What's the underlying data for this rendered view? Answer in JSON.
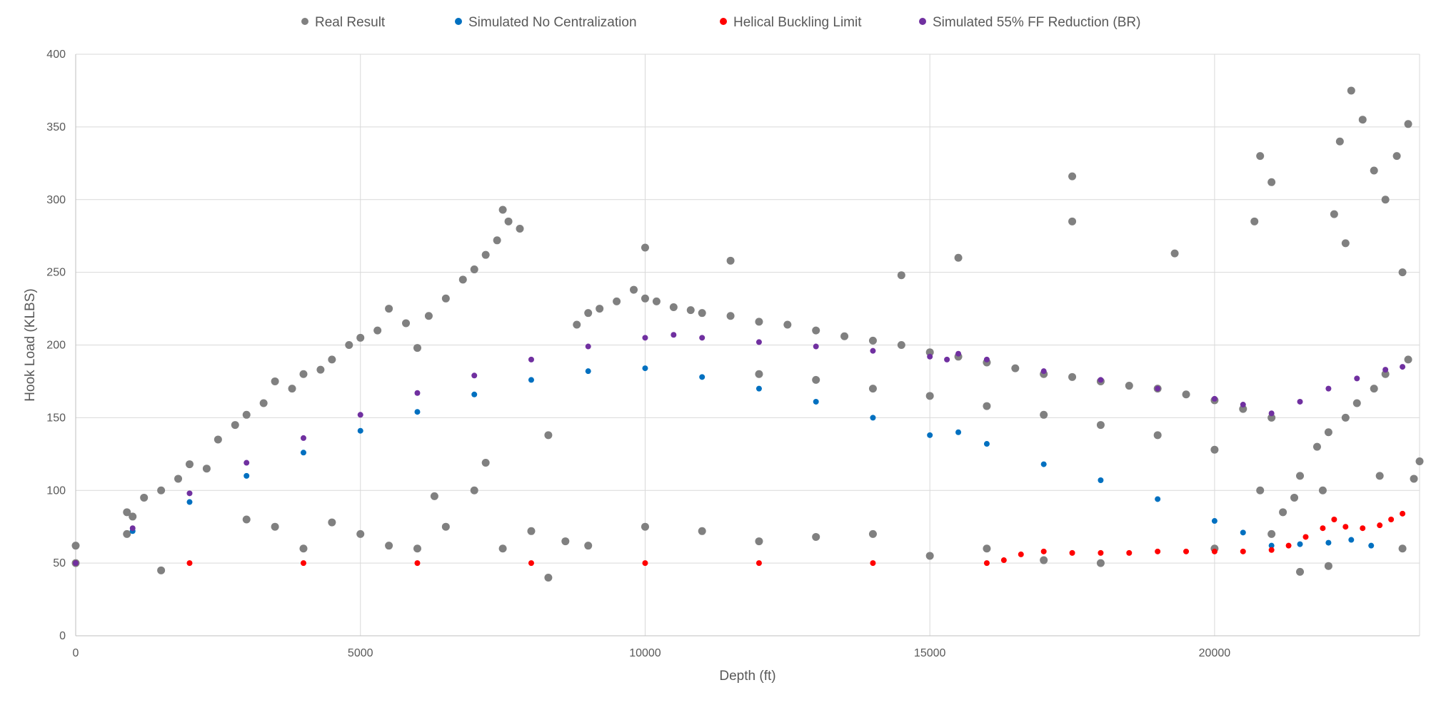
{
  "chart_data": {
    "type": "scatter",
    "title": "",
    "xlabel": "Depth (ft)",
    "ylabel": "Hook Load (KLBS)",
    "xlim": [
      0,
      23600
    ],
    "ylim": [
      0,
      400
    ],
    "x_ticks": [
      0,
      5000,
      10000,
      15000,
      20000
    ],
    "y_ticks": [
      0,
      50,
      100,
      150,
      200,
      250,
      300,
      350,
      400
    ],
    "x_tick_labels": [
      "0",
      "5000",
      "10000",
      "15000",
      "20000"
    ],
    "y_tick_labels": [
      "0",
      "50",
      "100",
      "150",
      "200",
      "250",
      "300",
      "350",
      "400"
    ],
    "grid": true,
    "legend_position": "top",
    "series": [
      {
        "name": "Real Result",
        "color": "#808080",
        "points": [
          [
            0,
            62
          ],
          [
            0,
            50
          ],
          [
            900,
            85
          ],
          [
            900,
            70
          ],
          [
            1000,
            82
          ],
          [
            1200,
            95
          ],
          [
            1500,
            100
          ],
          [
            1500,
            45
          ],
          [
            1800,
            108
          ],
          [
            2000,
            118
          ],
          [
            2300,
            115
          ],
          [
            2500,
            135
          ],
          [
            2800,
            145
          ],
          [
            3000,
            152
          ],
          [
            3300,
            160
          ],
          [
            3500,
            175
          ],
          [
            3800,
            170
          ],
          [
            4000,
            180
          ],
          [
            4300,
            183
          ],
          [
            4500,
            190
          ],
          [
            4800,
            200
          ],
          [
            5000,
            205
          ],
          [
            5300,
            210
          ],
          [
            5500,
            225
          ],
          [
            5800,
            215
          ],
          [
            6000,
            198
          ],
          [
            6200,
            220
          ],
          [
            6500,
            232
          ],
          [
            6800,
            245
          ],
          [
            7000,
            252
          ],
          [
            7200,
            262
          ],
          [
            7400,
            272
          ],
          [
            7600,
            285
          ],
          [
            7500,
            293
          ],
          [
            7800,
            280
          ],
          [
            3000,
            80
          ],
          [
            3500,
            75
          ],
          [
            4000,
            60
          ],
          [
            4500,
            78
          ],
          [
            5000,
            70
          ],
          [
            5500,
            62
          ],
          [
            6000,
            60
          ],
          [
            6500,
            75
          ],
          [
            6300,
            96
          ],
          [
            7000,
            100
          ],
          [
            7200,
            119
          ],
          [
            7500,
            60
          ],
          [
            8000,
            72
          ],
          [
            8300,
            40
          ],
          [
            8600,
            65
          ],
          [
            8800,
            214
          ],
          [
            9000,
            222
          ],
          [
            9200,
            225
          ],
          [
            9500,
            230
          ],
          [
            9800,
            238
          ],
          [
            10000,
            232
          ],
          [
            10200,
            230
          ],
          [
            10500,
            226
          ],
          [
            10800,
            224
          ],
          [
            11000,
            222
          ],
          [
            11500,
            220
          ],
          [
            12000,
            216
          ],
          [
            12500,
            214
          ],
          [
            13000,
            210
          ],
          [
            13500,
            206
          ],
          [
            14000,
            203
          ],
          [
            14500,
            200
          ],
          [
            15000,
            195
          ],
          [
            15500,
            192
          ],
          [
            16000,
            188
          ],
          [
            16500,
            184
          ],
          [
            17000,
            180
          ],
          [
            17500,
            178
          ],
          [
            18000,
            175
          ],
          [
            18500,
            172
          ],
          [
            19000,
            170
          ],
          [
            19500,
            166
          ],
          [
            20000,
            162
          ],
          [
            20500,
            156
          ],
          [
            21000,
            150
          ],
          [
            12000,
            180
          ],
          [
            13000,
            176
          ],
          [
            14000,
            170
          ],
          [
            15000,
            165
          ],
          [
            16000,
            158
          ],
          [
            17000,
            152
          ],
          [
            18000,
            145
          ],
          [
            19000,
            138
          ],
          [
            20000,
            128
          ],
          [
            20800,
            100
          ],
          [
            21000,
            70
          ],
          [
            21200,
            85
          ],
          [
            21500,
            110
          ],
          [
            21800,
            130
          ],
          [
            22000,
            140
          ],
          [
            22300,
            150
          ],
          [
            22500,
            160
          ],
          [
            22800,
            170
          ],
          [
            23000,
            180
          ],
          [
            23400,
            190
          ],
          [
            22200,
            340
          ],
          [
            22400,
            375
          ],
          [
            22600,
            355
          ],
          [
            22800,
            320
          ],
          [
            23000,
            300
          ],
          [
            23200,
            330
          ],
          [
            23400,
            352
          ],
          [
            22100,
            290
          ],
          [
            22300,
            270
          ],
          [
            23300,
            250
          ],
          [
            10000,
            267
          ],
          [
            11500,
            258
          ],
          [
            14500,
            248
          ],
          [
            15500,
            260
          ],
          [
            17500,
            316
          ],
          [
            17500,
            285
          ],
          [
            19300,
            263
          ],
          [
            20800,
            330
          ],
          [
            21000,
            312
          ],
          [
            20700,
            285
          ],
          [
            9000,
            62
          ],
          [
            10000,
            75
          ],
          [
            11000,
            72
          ],
          [
            12000,
            65
          ],
          [
            13000,
            68
          ],
          [
            14000,
            70
          ],
          [
            15000,
            55
          ],
          [
            16000,
            60
          ],
          [
            17000,
            52
          ],
          [
            18000,
            50
          ],
          [
            21500,
            44
          ],
          [
            22000,
            48
          ],
          [
            23300,
            60
          ],
          [
            23500,
            108
          ],
          [
            23600,
            120
          ],
          [
            22900,
            110
          ],
          [
            21900,
            100
          ],
          [
            21400,
            95
          ],
          [
            20000,
            60
          ],
          [
            8300,
            138
          ]
        ]
      },
      {
        "name": "Simulated No Centralization",
        "color": "#0070C0",
        "points": [
          [
            0,
            50
          ],
          [
            1000,
            72
          ],
          [
            2000,
            92
          ],
          [
            3000,
            110
          ],
          [
            4000,
            126
          ],
          [
            5000,
            141
          ],
          [
            6000,
            154
          ],
          [
            7000,
            166
          ],
          [
            8000,
            176
          ],
          [
            9000,
            182
          ],
          [
            10000,
            184
          ],
          [
            11000,
            178
          ],
          [
            12000,
            170
          ],
          [
            13000,
            161
          ],
          [
            14000,
            150
          ],
          [
            15000,
            138
          ],
          [
            15500,
            140
          ],
          [
            16000,
            132
          ],
          [
            17000,
            118
          ],
          [
            18000,
            107
          ],
          [
            19000,
            94
          ],
          [
            20000,
            79
          ],
          [
            20500,
            71
          ],
          [
            21000,
            62
          ],
          [
            21500,
            63
          ],
          [
            22000,
            64
          ],
          [
            22400,
            66
          ],
          [
            22750,
            62
          ]
        ]
      },
      {
        "name": "Helical Buckling Limit",
        "color": "#FF0000",
        "points": [
          [
            0,
            50
          ],
          [
            2000,
            50
          ],
          [
            4000,
            50
          ],
          [
            6000,
            50
          ],
          [
            8000,
            50
          ],
          [
            10000,
            50
          ],
          [
            12000,
            50
          ],
          [
            14000,
            50
          ],
          [
            16000,
            50
          ],
          [
            16300,
            52
          ],
          [
            16600,
            56
          ],
          [
            17000,
            58
          ],
          [
            17500,
            57
          ],
          [
            18000,
            57
          ],
          [
            18500,
            57
          ],
          [
            19000,
            58
          ],
          [
            19500,
            58
          ],
          [
            20000,
            58
          ],
          [
            20500,
            58
          ],
          [
            21000,
            59
          ],
          [
            21300,
            62
          ],
          [
            21600,
            68
          ],
          [
            21900,
            74
          ],
          [
            22100,
            80
          ],
          [
            22300,
            75
          ],
          [
            22600,
            74
          ],
          [
            22900,
            76
          ],
          [
            23100,
            80
          ],
          [
            23300,
            84
          ]
        ]
      },
      {
        "name": "Simulated 55% FF Reduction (BR)",
        "color": "#7030A0",
        "points": [
          [
            0,
            50
          ],
          [
            1000,
            74
          ],
          [
            2000,
            98
          ],
          [
            3000,
            119
          ],
          [
            4000,
            136
          ],
          [
            5000,
            152
          ],
          [
            6000,
            167
          ],
          [
            7000,
            179
          ],
          [
            8000,
            190
          ],
          [
            9000,
            199
          ],
          [
            10000,
            205
          ],
          [
            10500,
            207
          ],
          [
            11000,
            205
          ],
          [
            12000,
            202
          ],
          [
            13000,
            199
          ],
          [
            14000,
            196
          ],
          [
            15000,
            192
          ],
          [
            15300,
            190
          ],
          [
            15500,
            194
          ],
          [
            16000,
            190
          ],
          [
            17000,
            182
          ],
          [
            18000,
            176
          ],
          [
            19000,
            170
          ],
          [
            20000,
            163
          ],
          [
            20500,
            159
          ],
          [
            21000,
            153
          ],
          [
            21500,
            161
          ],
          [
            22000,
            170
          ],
          [
            22500,
            177
          ],
          [
            23000,
            183
          ],
          [
            23300,
            185
          ]
        ]
      }
    ]
  }
}
